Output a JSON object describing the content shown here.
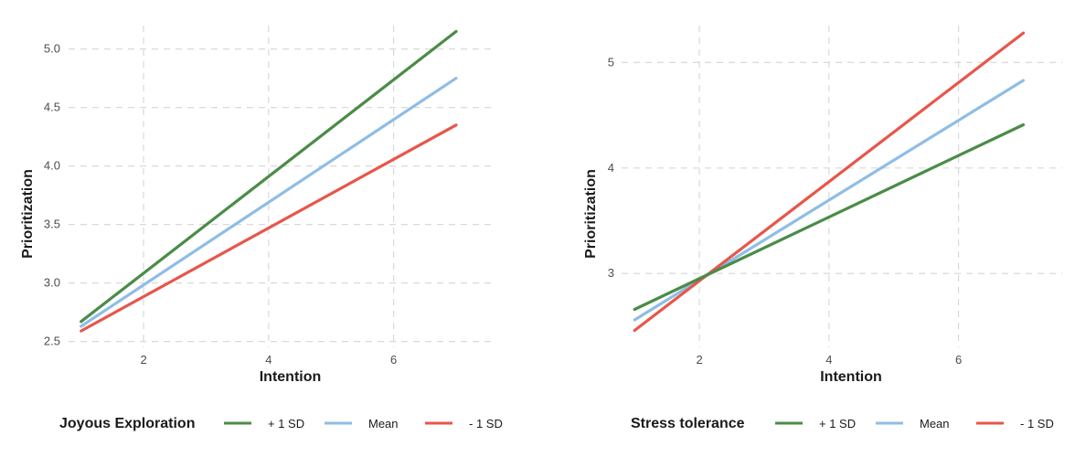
{
  "chart_data": [
    {
      "type": "line",
      "xlabel": "Intention",
      "ylabel": "Prioritization",
      "xlim": [
        0.8,
        7.6
      ],
      "ylim": [
        2.45,
        5.2
      ],
      "x_ticks": [
        2,
        4,
        6
      ],
      "y_ticks": [
        2.5,
        3.0,
        3.5,
        4.0,
        4.5,
        5.0
      ],
      "y_tick_labels": [
        "2.5",
        "3.0",
        "3.5",
        "4.0",
        "4.5",
        "5.0"
      ],
      "grid": true,
      "legend": {
        "title": "Joyous Exploration",
        "position": "bottom",
        "items": [
          "+ 1 SD",
          "Mean",
          "- 1 SD"
        ]
      },
      "series": [
        {
          "name": "+ 1 SD",
          "color": "#4a8c47",
          "x": [
            1,
            7
          ],
          "y": [
            2.67,
            5.15
          ]
        },
        {
          "name": "Mean",
          "color": "#8fbde6",
          "x": [
            1,
            7
          ],
          "y": [
            2.63,
            4.75
          ]
        },
        {
          "name": "- 1 SD",
          "color": "#e8564a",
          "x": [
            1,
            7
          ],
          "y": [
            2.59,
            4.35
          ]
        }
      ]
    },
    {
      "type": "line",
      "xlabel": "Intention",
      "ylabel": "Prioritization",
      "xlim": [
        0.8,
        7.6
      ],
      "ylim": [
        2.3,
        5.35
      ],
      "x_ticks": [
        2,
        4,
        6
      ],
      "y_ticks": [
        3,
        4,
        5
      ],
      "y_tick_labels": [
        "3",
        "4",
        "5"
      ],
      "grid": true,
      "legend": {
        "title": "Stress tolerance",
        "position": "bottom",
        "items": [
          "+ 1 SD",
          "Mean",
          "- 1 SD"
        ]
      },
      "series": [
        {
          "name": "+ 1 SD",
          "color": "#4a8c47",
          "x": [
            1,
            7
          ],
          "y": [
            2.66,
            4.41
          ]
        },
        {
          "name": "Mean",
          "color": "#8fbde6",
          "x": [
            1,
            7
          ],
          "y": [
            2.56,
            4.83
          ]
        },
        {
          "name": "- 1 SD",
          "color": "#e8564a",
          "x": [
            1,
            7
          ],
          "y": [
            2.46,
            5.28
          ]
        }
      ]
    }
  ]
}
